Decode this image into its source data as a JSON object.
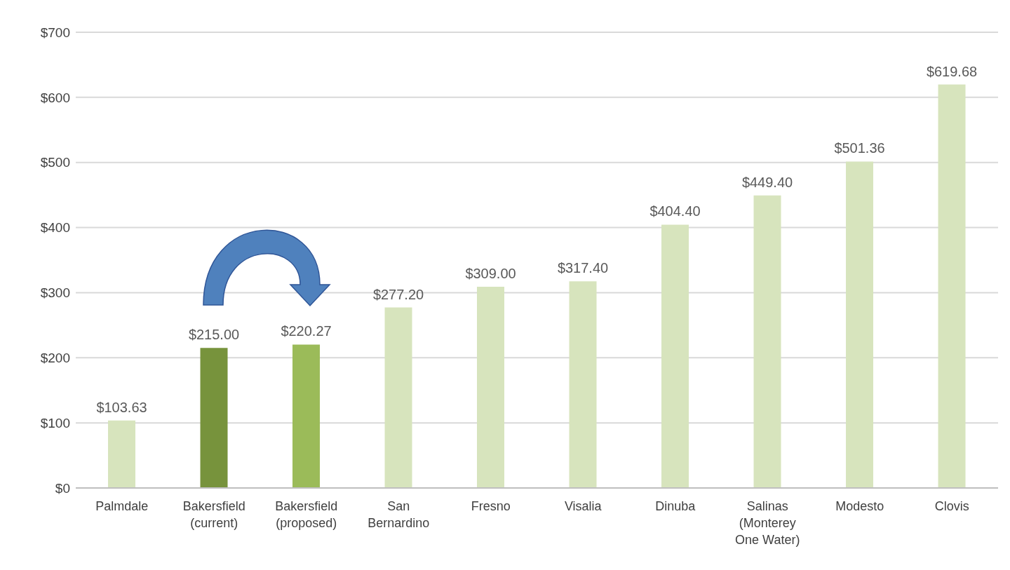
{
  "chart_data": {
    "type": "bar",
    "categories": [
      "Palmdale",
      "Bakersfield (current)",
      "Bakersfield (proposed)",
      "San Bernardino",
      "Fresno",
      "Visalia",
      "Dinuba",
      "Salinas (Monterey One Water)",
      "Modesto",
      "Clovis"
    ],
    "values": [
      103.63,
      215.0,
      220.27,
      277.2,
      309.0,
      317.4,
      404.4,
      449.4,
      501.36,
      619.68
    ],
    "value_labels": [
      "$103.63",
      "$215.00",
      "$220.27",
      "$277.20",
      "$309.00",
      "$317.40",
      "$404.40",
      "$449.40",
      "$501.36",
      "$619.68"
    ],
    "colors": [
      "#d7e4bd",
      "#77933c",
      "#9bbb59",
      "#d7e4bd",
      "#d7e4bd",
      "#d7e4bd",
      "#d7e4bd",
      "#d7e4bd",
      "#d7e4bd",
      "#d7e4bd"
    ],
    "ylim": [
      0,
      700
    ],
    "yticks": [
      {
        "value": 0,
        "label": "$0"
      },
      {
        "value": 100,
        "label": "$100"
      },
      {
        "value": 200,
        "label": "$200"
      },
      {
        "value": 300,
        "label": "$300"
      },
      {
        "value": 400,
        "label": "$400"
      },
      {
        "value": 500,
        "label": "$500"
      },
      {
        "value": 600,
        "label": "$600"
      },
      {
        "value": 700,
        "label": "$700"
      }
    ],
    "grid": "y"
  }
}
